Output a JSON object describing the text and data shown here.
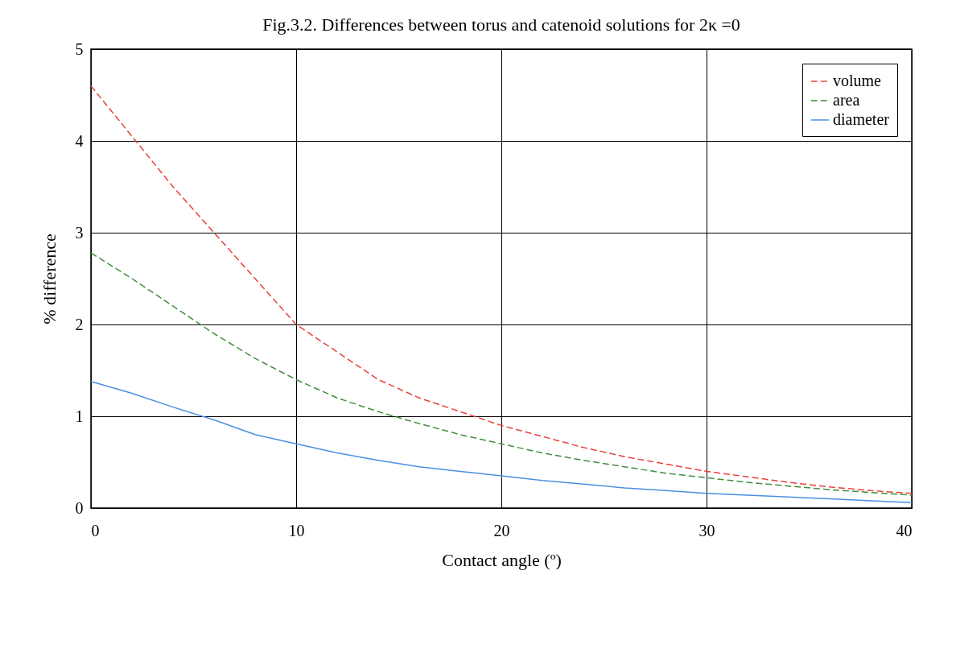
{
  "chart_data": {
    "type": "line",
    "title": "Fig.3.2. Differences between torus and catenoid solutions for 2κ =0",
    "xlabel": "Contact angle (º)",
    "ylabel": "% difference",
    "x": [
      0,
      2,
      4,
      6,
      8,
      10,
      12,
      14,
      16,
      18,
      20,
      22,
      24,
      26,
      28,
      30,
      32,
      34,
      36,
      38,
      40
    ],
    "series": [
      {
        "name": "volume",
        "color": "#e8413a",
        "line_style": "dashed",
        "values": [
          4.6,
          4.05,
          3.5,
          3.0,
          2.5,
          2.0,
          1.7,
          1.4,
          1.2,
          1.05,
          0.9,
          0.78,
          0.66,
          0.56,
          0.48,
          0.4,
          0.34,
          0.28,
          0.23,
          0.19,
          0.16
        ]
      },
      {
        "name": "area",
        "color": "#3f8f3a",
        "line_style": "dashed",
        "values": [
          2.78,
          2.5,
          2.2,
          1.9,
          1.63,
          1.4,
          1.2,
          1.05,
          0.92,
          0.8,
          0.7,
          0.6,
          0.52,
          0.45,
          0.38,
          0.33,
          0.28,
          0.24,
          0.2,
          0.17,
          0.14
        ]
      },
      {
        "name": "diameter",
        "color": "#4a90e2",
        "line_style": "solid",
        "values": [
          1.38,
          1.25,
          1.1,
          0.96,
          0.8,
          0.7,
          0.6,
          0.52,
          0.45,
          0.4,
          0.35,
          0.3,
          0.26,
          0.22,
          0.19,
          0.16,
          0.14,
          0.12,
          0.1,
          0.08,
          0.06
        ]
      }
    ],
    "xlim": [
      0,
      40
    ],
    "xticks": [
      0,
      10,
      20,
      30,
      40
    ],
    "ylim": [
      0,
      5
    ],
    "yticks": [
      0,
      1,
      2,
      3,
      4,
      5
    ],
    "grid": true,
    "legend": "top right",
    "marker": "none"
  }
}
